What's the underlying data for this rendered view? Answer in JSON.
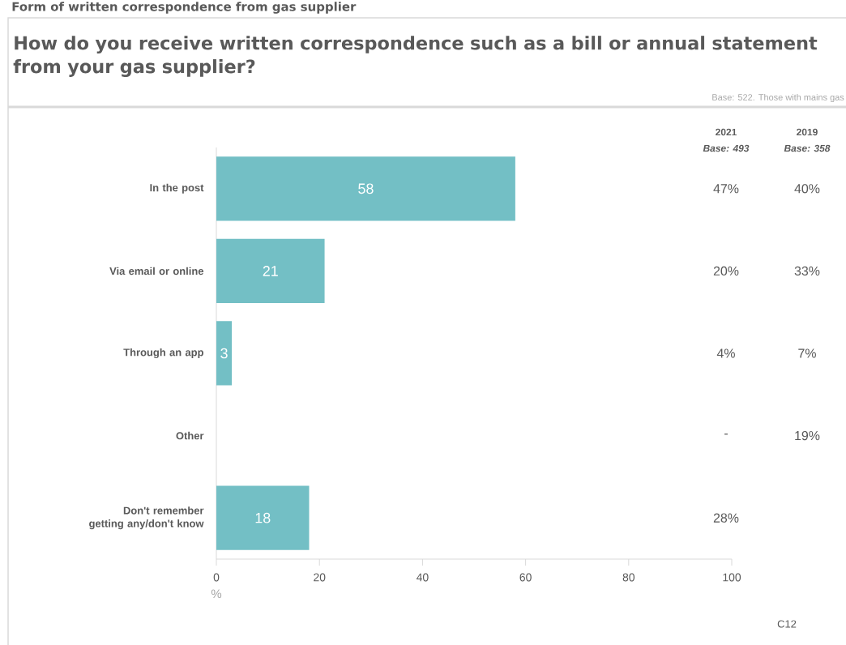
{
  "chart_data": {
    "type": "bar",
    "orientation": "horizontal",
    "title": "How do you receive written correspondence such as a bill or annual statement from your gas supplier?",
    "categories": [
      "In the post",
      "Via email or online",
      "Through an app",
      "Other",
      "Don't remember getting any/don't know"
    ],
    "values": [
      58,
      21,
      3,
      null,
      18
    ],
    "color": "#73bfc5",
    "xlim": [
      0,
      100
    ],
    "xticks": [
      0,
      20,
      40,
      60,
      80,
      100
    ],
    "xlabel": "%",
    "data_labels": true,
    "annotations": [
      "Form of written correspondence from gas supplier",
      "Base: 522. Those with mains gas",
      "2021",
      "Base: 493",
      "2019",
      "Base: 358",
      "47%",
      "20%",
      "4%",
      "-",
      "28%",
      "40%",
      "33%",
      "7%",
      "19%",
      "C12"
    ]
  }
}
